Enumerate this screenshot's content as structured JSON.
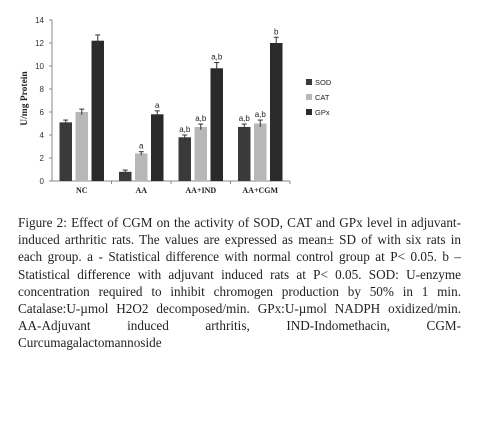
{
  "chart_data": {
    "type": "bar",
    "title": "",
    "xlabel": "",
    "ylabel": "U/mg Protein",
    "ylim": [
      0,
      14
    ],
    "yticks": [
      0,
      2,
      4,
      6,
      8,
      10,
      12,
      14
    ],
    "categories": [
      "NC",
      "AA",
      "AA+IND",
      "AA+CGM"
    ],
    "legend_position": "right",
    "grid": false,
    "series": [
      {
        "name": "SOD",
        "color": "#3a3a3a",
        "values": [
          5.1,
          0.8,
          3.8,
          4.7
        ],
        "errors": [
          0.2,
          0.15,
          0.2,
          0.25
        ],
        "labels": [
          "",
          "",
          "a,b",
          "a,b"
        ]
      },
      {
        "name": "CAT",
        "color": "#b7b7b7",
        "values": [
          6.0,
          2.4,
          4.7,
          5.0
        ],
        "errors": [
          0.25,
          0.15,
          0.25,
          0.3
        ],
        "labels": [
          "",
          "a",
          "a,b",
          "a,b"
        ]
      },
      {
        "name": "GPx",
        "color": "#2a2a2a",
        "values": [
          12.2,
          5.8,
          9.8,
          12.0
        ],
        "errors": [
          0.5,
          0.3,
          0.5,
          0.5
        ],
        "labels": [
          "",
          "a",
          "a,b",
          "b"
        ]
      }
    ]
  },
  "caption": "Figure 2: Effect of CGM on the activity of SOD, CAT and GPx level in adjuvant-induced arthritic rats. The values are expressed as mean± SD of with six rats in each group. a - Statistical difference with normal control group at P< 0.05. b – Statistical difference with adjuvant induced rats at P< 0.05. SOD: U-enzyme concentration required to inhibit chromogen production by 50% in 1 min. Catalase:U-µmol H2O2 decomposed/min. GPx:U-µmol NADPH oxidized/min. AA-Adjuvant induced arthritis, IND-Indomethacin, CGM-Curcumagalactomannoside"
}
